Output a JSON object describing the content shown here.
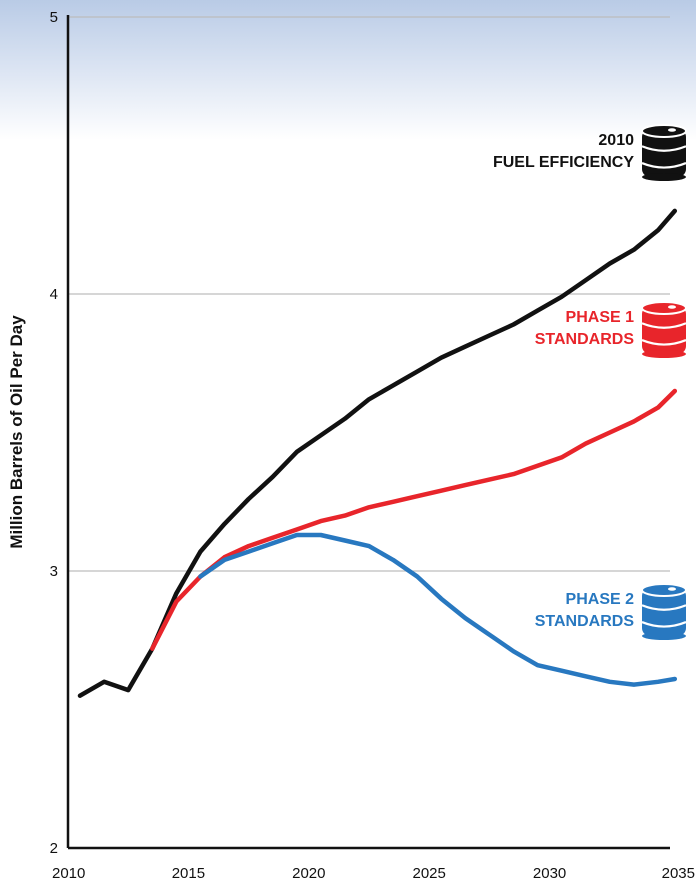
{
  "chart_data": {
    "type": "line",
    "title": "",
    "xlabel": "",
    "ylabel": "Million Barrels of Oil Per Day",
    "xlim": [
      2010,
      2035
    ],
    "ylim": [
      2,
      5
    ],
    "x_ticks": [
      "2010",
      "2015",
      "2020",
      "2025",
      "2030",
      "2035"
    ],
    "y_ticks": [
      "2",
      "3",
      "4",
      "5"
    ],
    "grid": "horizontal",
    "series": [
      {
        "color": "#111111",
        "x": [
          2010.5,
          2011.5,
          2012.5,
          2013.5,
          2014.5,
          2015.5,
          2016.5,
          2017.5,
          2018.5,
          2019.5,
          2020.5,
          2021.5,
          2022.5,
          2023.5,
          2024.5,
          2025.5,
          2026.5,
          2027.5,
          2028.5,
          2029.5,
          2030.5,
          2031.5,
          2032.5,
          2033.5,
          2034.5,
          2035.2
        ],
        "y": [
          2.55,
          2.6,
          2.57,
          2.72,
          2.92,
          3.07,
          3.17,
          3.26,
          3.34,
          3.43,
          3.49,
          3.55,
          3.62,
          3.67,
          3.72,
          3.77,
          3.81,
          3.85,
          3.89,
          3.94,
          3.99,
          4.05,
          4.11,
          4.16,
          4.23,
          4.3
        ]
      },
      {
        "color": "#e8252b",
        "x": [
          2013.5,
          2014.5,
          2015.5,
          2016.5,
          2017.5,
          2018.5,
          2019.5,
          2020.5,
          2021.5,
          2022.5,
          2023.5,
          2024.5,
          2025.5,
          2026.5,
          2027.5,
          2028.5,
          2029.5,
          2030.5,
          2031.5,
          2032.5,
          2033.5,
          2034.5,
          2035.2
        ],
        "y": [
          2.72,
          2.89,
          2.98,
          3.05,
          3.09,
          3.12,
          3.15,
          3.18,
          3.2,
          3.23,
          3.25,
          3.27,
          3.29,
          3.31,
          3.33,
          3.35,
          3.38,
          3.41,
          3.46,
          3.5,
          3.54,
          3.59,
          3.65
        ]
      },
      {
        "color": "#2878c0",
        "x": [
          2015.5,
          2016.5,
          2017.5,
          2018.5,
          2019.5,
          2020.5,
          2021.5,
          2022.5,
          2023.5,
          2024.5,
          2025.5,
          2026.5,
          2027.5,
          2028.5,
          2029.5,
          2030.5,
          2031.5,
          2032.5,
          2033.5,
          2034.5,
          2035.2
        ],
        "y": [
          2.98,
          3.04,
          3.07,
          3.1,
          3.13,
          3.13,
          3.11,
          3.09,
          3.04,
          2.98,
          2.9,
          2.83,
          2.77,
          2.71,
          2.66,
          2.64,
          2.62,
          2.6,
          2.59,
          2.6,
          2.61
        ]
      }
    ],
    "annotations": [
      {
        "lines": [
          "2010",
          "FUEL EFFICIENCY"
        ],
        "color": "#111111",
        "icon": "oil-barrel-icon"
      },
      {
        "lines": [
          "PHASE 1",
          "STANDARDS"
        ],
        "color": "#e8252b",
        "icon": "oil-barrel-icon"
      },
      {
        "lines": [
          "PHASE 2",
          "STANDARDS"
        ],
        "color": "#2878c0",
        "icon": "oil-barrel-icon"
      }
    ]
  },
  "colors": {
    "background_top": "#b9cbe6",
    "background_bottom": "#ffffff",
    "gridline": "#bdbdbd",
    "axis": "#111111"
  }
}
